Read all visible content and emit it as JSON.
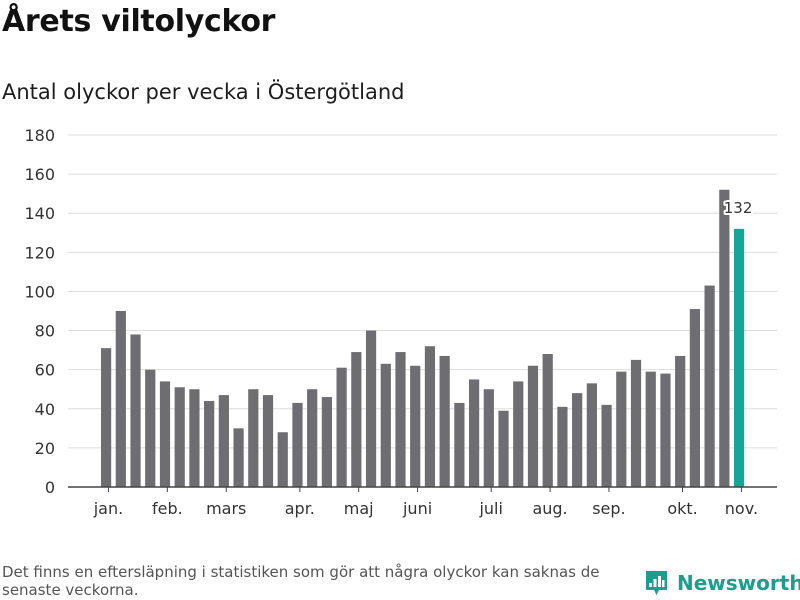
{
  "chart_data": {
    "type": "bar",
    "title": "Årets viltolyckor",
    "subtitle": "Antal olyckor per vecka i Östergötland",
    "xlabel": "",
    "ylabel": "",
    "ylim": [
      0,
      180
    ],
    "y_ticks": [
      0,
      20,
      40,
      60,
      80,
      100,
      120,
      140,
      160,
      180
    ],
    "grid": true,
    "values": [
      71,
      90,
      78,
      60,
      54,
      51,
      50,
      44,
      47,
      30,
      50,
      47,
      28,
      43,
      50,
      46,
      61,
      69,
      80,
      63,
      69,
      62,
      72,
      67,
      43,
      55,
      50,
      39,
      54,
      62,
      68,
      41,
      48,
      53,
      42,
      59,
      65,
      59,
      58,
      67,
      91,
      103,
      152,
      132
    ],
    "month_labels": [
      {
        "label": "jan.",
        "bar_index": 0.5
      },
      {
        "label": "feb.",
        "bar_index": 4.5
      },
      {
        "label": "mars",
        "bar_index": 8.5
      },
      {
        "label": "apr.",
        "bar_index": 13.5
      },
      {
        "label": "maj",
        "bar_index": 17.5
      },
      {
        "label": "juni",
        "bar_index": 21.5
      },
      {
        "label": "juli",
        "bar_index": 26.5
      },
      {
        "label": "aug.",
        "bar_index": 30.5
      },
      {
        "label": "sep.",
        "bar_index": 34.5
      },
      {
        "label": "okt.",
        "bar_index": 39.5
      },
      {
        "label": "nov.",
        "bar_index": 43.5
      }
    ],
    "highlight_index": 43,
    "highlight_label": "132",
    "bar_color": "#6d6d72",
    "highlight_color": "#19a595",
    "grid_color": "#dddddd",
    "axis_color": "#444444"
  },
  "footnote": "Det finns en eftersläpning i statistiken som gör att några olyckor kan saknas de senaste veckorna.",
  "brand": {
    "name": "Newsworthy",
    "color": "#1a9e8f"
  }
}
